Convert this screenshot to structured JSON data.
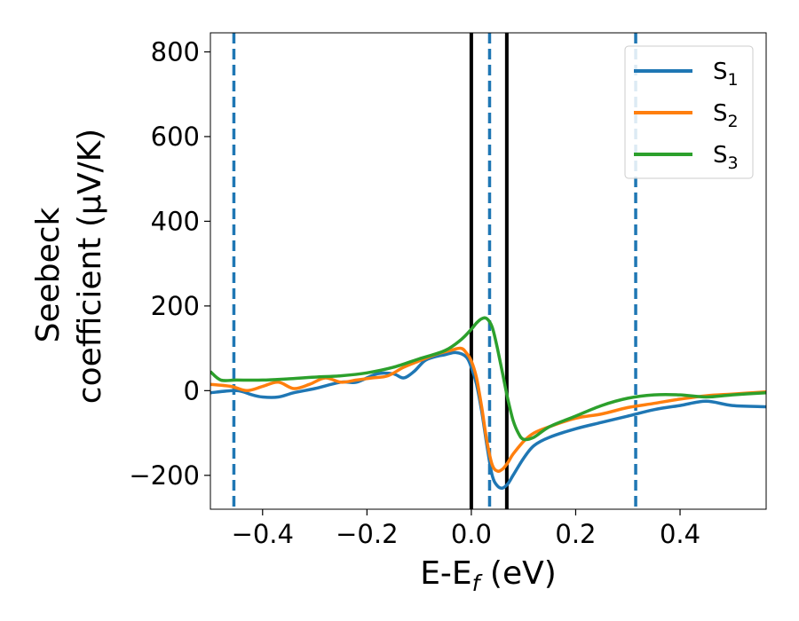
{
  "chart_data": {
    "type": "line",
    "xlabel": "E-E",
    "xlabel_sub": "f",
    "xlabel_unit": " (eV)",
    "ylabel_line1": "Seebeck",
    "ylabel_line2": "coefficient  (μV/K)",
    "xlim": [
      -0.5,
      0.565
    ],
    "ylim": [
      -280,
      845
    ],
    "xticks": [
      -0.4,
      -0.2,
      0.0,
      0.2,
      0.4
    ],
    "xtick_labels": [
      "−0.4",
      "−0.2",
      "0.0",
      "0.2",
      "0.4"
    ],
    "yticks": [
      -200,
      0,
      200,
      400,
      600,
      800
    ],
    "ytick_labels": [
      "−200",
      "0",
      "200",
      "400",
      "600",
      "800"
    ],
    "grid": false,
    "legend_position": "top-right",
    "series": [
      {
        "name": "S",
        "sub": "1",
        "color": "#1f77b4",
        "x": [
          -0.5,
          -0.45,
          -0.42,
          -0.4,
          -0.37,
          -0.34,
          -0.3,
          -0.25,
          -0.22,
          -0.18,
          -0.15,
          -0.13,
          -0.11,
          -0.09,
          -0.07,
          -0.05,
          -0.03,
          -0.01,
          0.0,
          0.01,
          0.02,
          0.03,
          0.04,
          0.05,
          0.06,
          0.07,
          0.08,
          0.1,
          0.12,
          0.15,
          0.2,
          0.25,
          0.3,
          0.35,
          0.4,
          0.45,
          0.5,
          0.565
        ],
        "y": [
          -5,
          0,
          -10,
          -15,
          -15,
          -5,
          5,
          20,
          20,
          40,
          40,
          30,
          45,
          70,
          80,
          85,
          90,
          80,
          55,
          15,
          -50,
          -130,
          -200,
          -225,
          -230,
          -220,
          -200,
          -160,
          -130,
          -110,
          -90,
          -75,
          -60,
          -45,
          -35,
          -25,
          -35,
          -38
        ]
      },
      {
        "name": "S",
        "sub": "2",
        "color": "#ff7f0e",
        "x": [
          -0.5,
          -0.46,
          -0.43,
          -0.4,
          -0.37,
          -0.34,
          -0.31,
          -0.28,
          -0.25,
          -0.22,
          -0.19,
          -0.16,
          -0.13,
          -0.1,
          -0.07,
          -0.04,
          -0.02,
          -0.01,
          0.0,
          0.01,
          0.02,
          0.03,
          0.04,
          0.05,
          0.06,
          0.07,
          0.08,
          0.1,
          0.12,
          0.15,
          0.2,
          0.25,
          0.3,
          0.35,
          0.4,
          0.45,
          0.5,
          0.565
        ],
        "y": [
          15,
          10,
          0,
          10,
          20,
          5,
          15,
          30,
          20,
          25,
          30,
          35,
          55,
          70,
          85,
          95,
          100,
          90,
          70,
          30,
          -40,
          -120,
          -175,
          -190,
          -185,
          -170,
          -150,
          -120,
          -100,
          -85,
          -65,
          -55,
          -40,
          -30,
          -20,
          -12,
          -8,
          -3
        ]
      },
      {
        "name": "S",
        "sub": "3",
        "color": "#2ca02c",
        "x": [
          -0.5,
          -0.48,
          -0.45,
          -0.4,
          -0.35,
          -0.3,
          -0.25,
          -0.2,
          -0.15,
          -0.1,
          -0.05,
          -0.02,
          0.0,
          0.01,
          0.02,
          0.03,
          0.04,
          0.05,
          0.06,
          0.07,
          0.08,
          0.09,
          0.1,
          0.12,
          0.15,
          0.2,
          0.25,
          0.3,
          0.35,
          0.4,
          0.45,
          0.5,
          0.565
        ],
        "y": [
          45,
          25,
          25,
          25,
          28,
          32,
          35,
          42,
          55,
          75,
          95,
          120,
          145,
          160,
          170,
          170,
          150,
          100,
          40,
          -20,
          -70,
          -100,
          -115,
          -110,
          -85,
          -60,
          -35,
          -18,
          -10,
          -10,
          -15,
          -10,
          -5
        ]
      }
    ],
    "vlines": [
      {
        "x": 0.0,
        "style": "solid",
        "color": "#000000"
      },
      {
        "x": 0.068,
        "style": "solid",
        "color": "#000000"
      },
      {
        "x": -0.455,
        "style": "dashed",
        "color": "#1f77b4"
      },
      {
        "x": 0.035,
        "style": "dashed",
        "color": "#1f77b4"
      },
      {
        "x": 0.315,
        "style": "dashed",
        "color": "#1f77b4"
      }
    ]
  }
}
